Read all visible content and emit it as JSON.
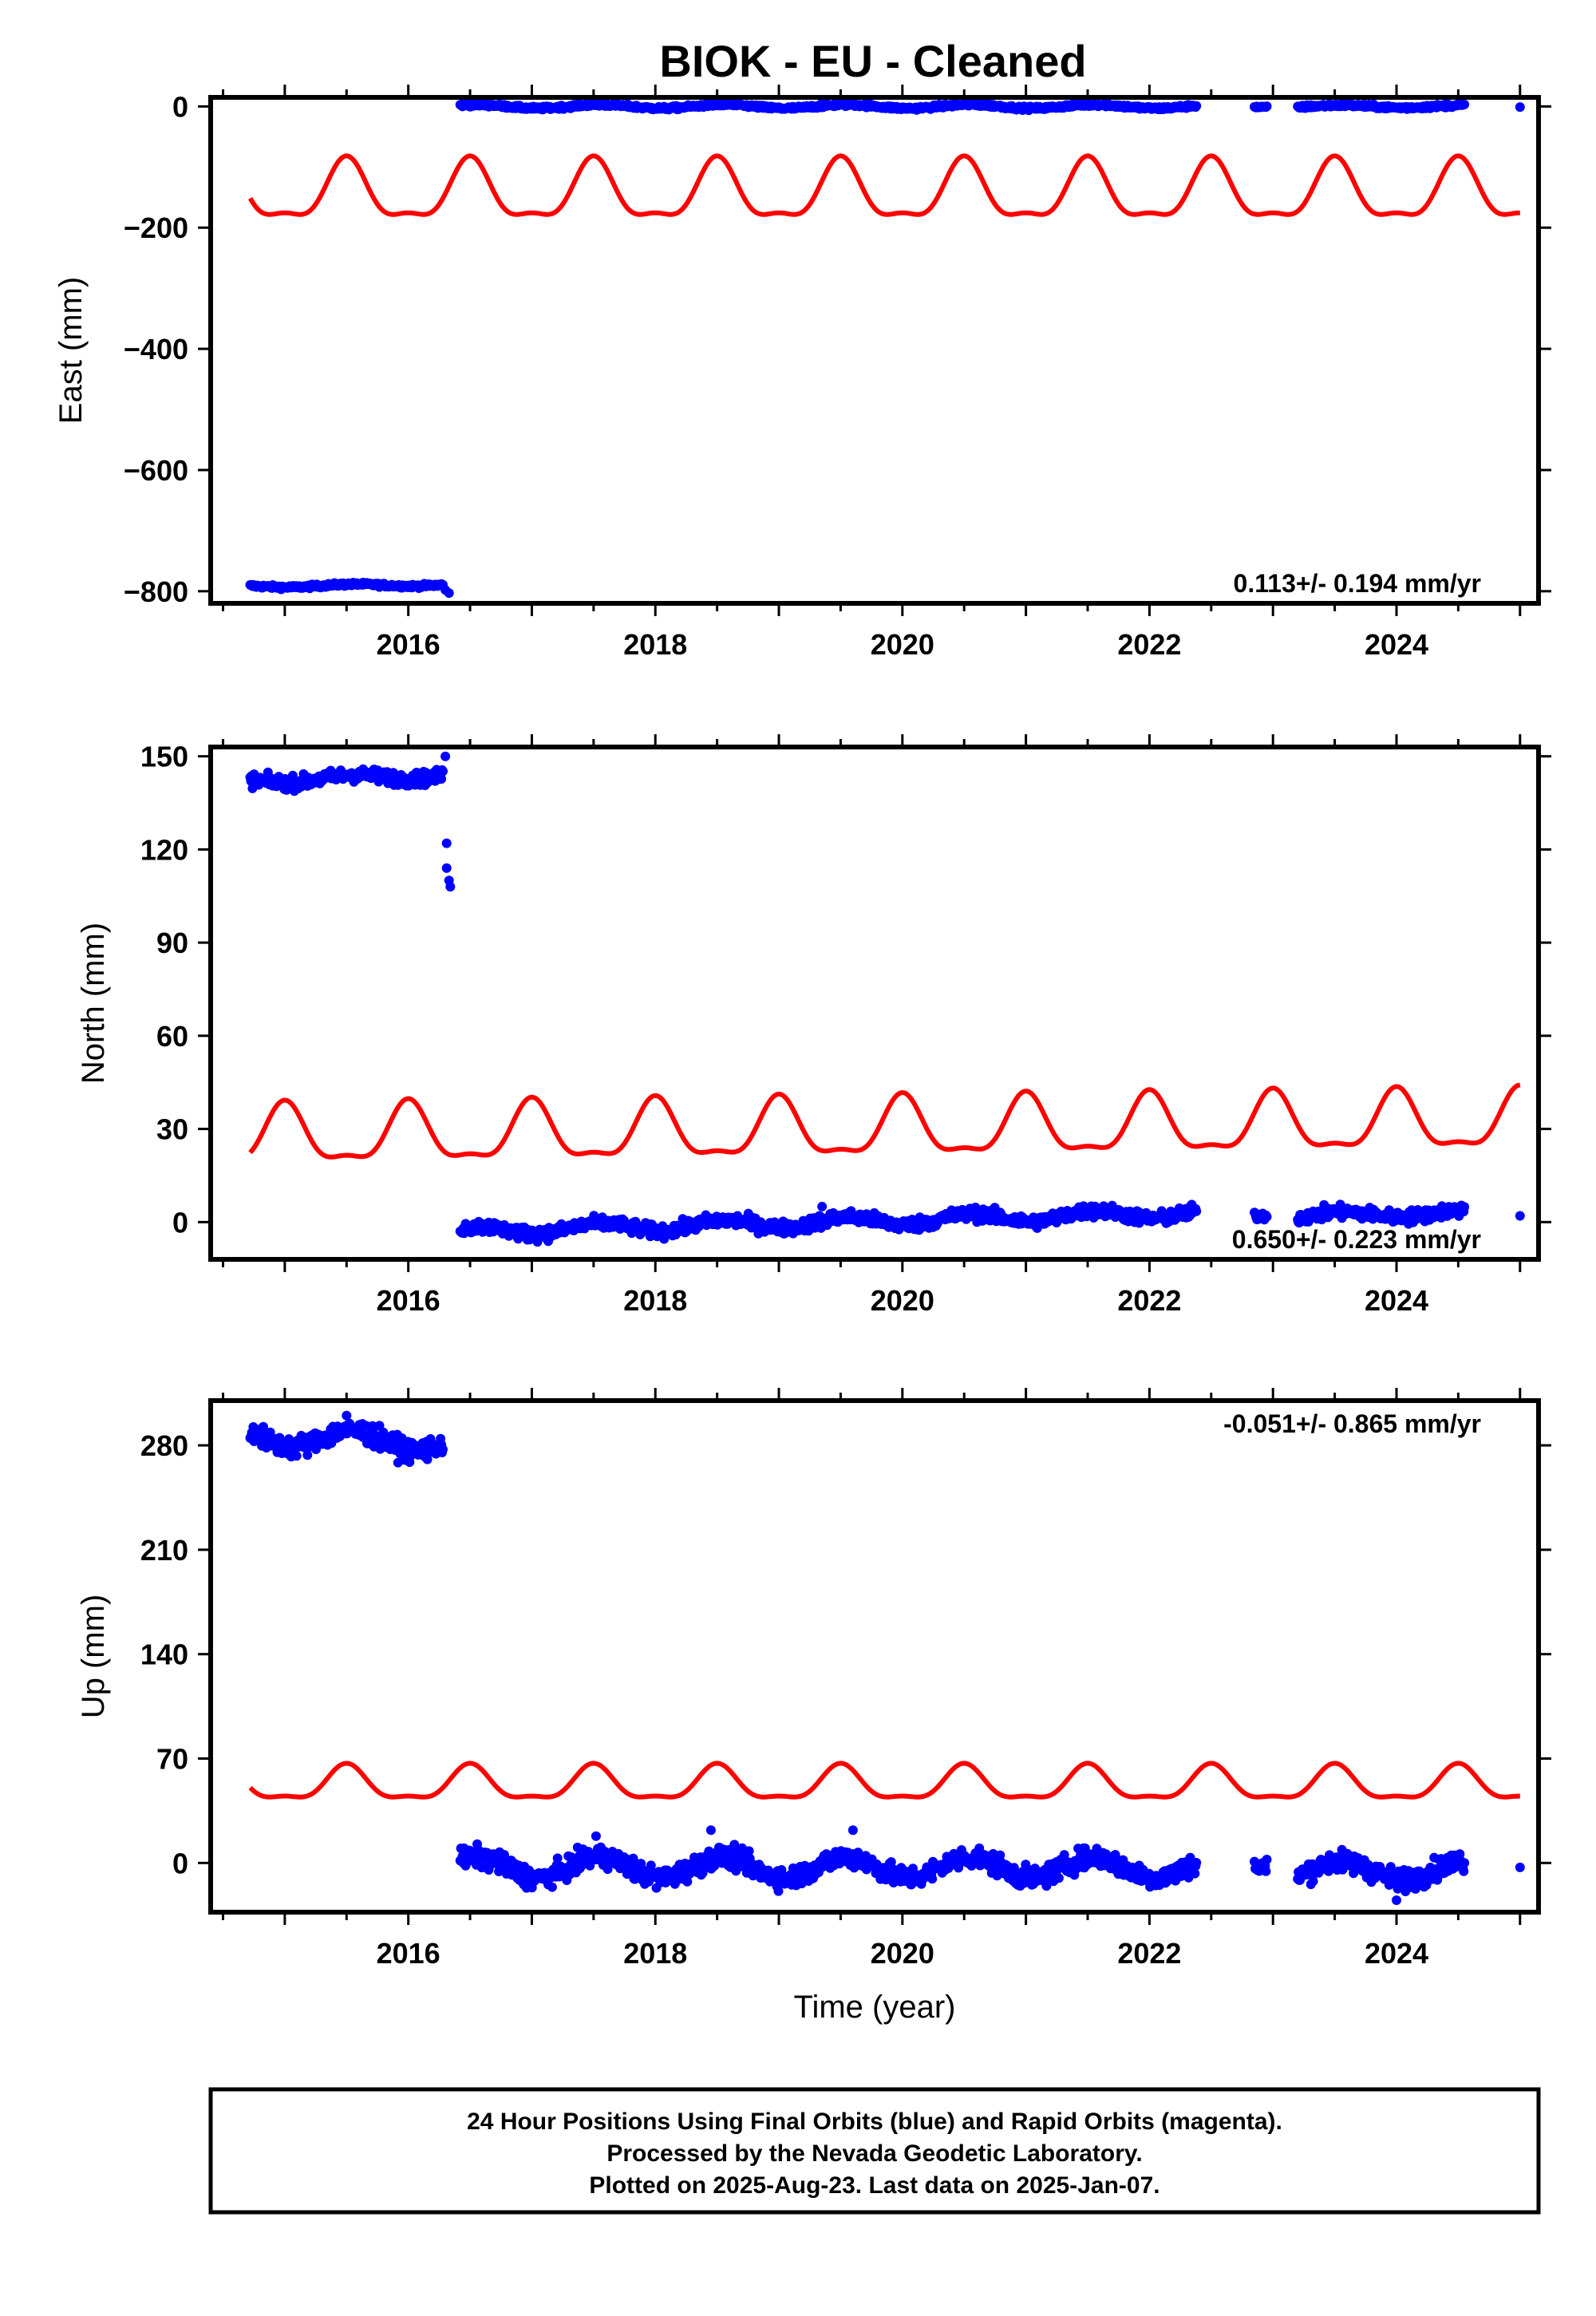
{
  "title": "BIOK  - EU - Cleaned",
  "footer": {
    "line1": "24 Hour Positions Using Final Orbits (blue) and Rapid Orbits (magenta).",
    "line2": "Processed by the Nevada Geodetic Laboratory.",
    "line3": "Plotted on 2025-Aug-23. Last data on 2025-Jan-07."
  },
  "colors": {
    "data": "#0000ff",
    "model": "#ff0000",
    "frame": "#000000"
  },
  "chart_data": [
    {
      "type": "scatter",
      "ylabel": "East (mm)",
      "xlabel": "",
      "xlim": [
        2014.4,
        2025.15
      ],
      "ylim": [
        -820,
        15
      ],
      "xticks": [
        2016,
        2018,
        2020,
        2022,
        2024
      ],
      "yticks": [
        0,
        -200,
        -400,
        -600,
        -800
      ],
      "rate": "0.113+/- 0.194 mm/yr",
      "rate_position": "bottom-right",
      "series": [
        {
          "kind": "data",
          "segments": [
            {
              "x0": 2014.72,
              "x1": 2016.28,
              "y0": -792,
              "y1": -789,
              "amp": 2,
              "noise": 2
            },
            {
              "x0": 2016.42,
              "x1": 2022.38,
              "y0": 0,
              "y1": 0,
              "amp": 3,
              "noise": 2
            },
            {
              "x0": 2022.85,
              "x1": 2022.95,
              "y0": -1,
              "y1": -1,
              "amp": 0,
              "noise": 1
            },
            {
              "x0": 2023.2,
              "x1": 2024.55,
              "y0": 0,
              "y1": 0,
              "amp": 2,
              "noise": 2
            }
          ],
          "points": [
            [
              2016.3,
              -798
            ],
            [
              2016.33,
              -803
            ],
            [
              2019.35,
              6
            ],
            [
              2025.0,
              -1
            ]
          ]
        },
        {
          "kind": "model",
          "x0": 2014.72,
          "x1": 2025.0,
          "y0": -145,
          "y1": -145,
          "amp": 47,
          "phase": 0.5
        }
      ]
    },
    {
      "type": "scatter",
      "ylabel": "North (mm)",
      "xlabel": "",
      "xlim": [
        2014.4,
        2025.15
      ],
      "ylim": [
        -12,
        153
      ],
      "xticks": [
        2016,
        2018,
        2020,
        2022,
        2024
      ],
      "yticks": [
        0,
        30,
        60,
        90,
        120,
        150
      ],
      "rate": "0.650+/- 0.223 mm/yr",
      "rate_position": "bottom-right",
      "series": [
        {
          "kind": "data",
          "segments": [
            {
              "x0": 2014.72,
              "x1": 2016.28,
              "y0": 142,
              "y1": 144,
              "amp": 1,
              "noise": 1.5
            },
            {
              "x0": 2016.42,
              "x1": 2022.38,
              "y0": -3,
              "y1": 3,
              "amp": 1.5,
              "noise": 1.5
            },
            {
              "x0": 2022.85,
              "x1": 2022.95,
              "y0": 2,
              "y1": 2,
              "amp": 0,
              "noise": 1
            },
            {
              "x0": 2023.2,
              "x1": 2024.55,
              "y0": 2,
              "y1": 3,
              "amp": 1,
              "noise": 1.5
            }
          ],
          "points": [
            [
              2016.3,
              150
            ],
            [
              2016.31,
              122
            ],
            [
              2016.31,
              114
            ],
            [
              2016.33,
              110
            ],
            [
              2016.34,
              108
            ],
            [
              2019.35,
              5
            ],
            [
              2025.0,
              2
            ]
          ]
        },
        {
          "kind": "model",
          "x0": 2014.72,
          "x1": 2025.0,
          "y0": 27,
          "y1": 32,
          "amp": 9,
          "phase": 0.0
        }
      ]
    },
    {
      "type": "scatter",
      "ylabel": "Up (mm)",
      "xlabel": "Time (year)",
      "xlim": [
        2014.4,
        2025.15
      ],
      "ylim": [
        -33,
        310
      ],
      "xticks": [
        2016,
        2018,
        2020,
        2022,
        2024
      ],
      "yticks": [
        0,
        70,
        140,
        210,
        280
      ],
      "rate": "-0.051+/- 0.865 mm/yr",
      "rate_position": "top-right",
      "series": [
        {
          "kind": "data",
          "segments": [
            {
              "x0": 2014.72,
              "x1": 2016.28,
              "y0": 286,
              "y1": 282,
              "amp": 6,
              "noise": 5
            },
            {
              "x0": 2016.42,
              "x1": 2022.38,
              "y0": -3,
              "y1": -3,
              "amp": 7,
              "noise": 5
            },
            {
              "x0": 2022.85,
              "x1": 2022.95,
              "y0": -3,
              "y1": -3,
              "amp": 0,
              "noise": 4
            },
            {
              "x0": 2023.2,
              "x1": 2024.55,
              "y0": -5,
              "y1": -5,
              "amp": 6,
              "noise": 5
            }
          ],
          "points": [
            [
              2015.5,
              300
            ],
            [
              2018.45,
              22
            ],
            [
              2017.52,
              18
            ],
            [
              2019.6,
              22
            ],
            [
              2024.0,
              -25
            ],
            [
              2025.0,
              -3
            ]
          ]
        },
        {
          "kind": "model",
          "x0": 2014.72,
          "x1": 2025.0,
          "y0": 52,
          "y1": 52,
          "amp": 11,
          "phase": 0.5
        }
      ]
    }
  ]
}
